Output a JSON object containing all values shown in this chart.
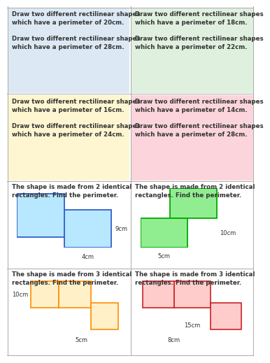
{
  "bg_color": "#ffffff",
  "cell_colors": [
    "#dce9f5",
    "#dff0de",
    "#fdf6d0",
    "#fcd5dc"
  ],
  "top_left_texts": [
    "Draw two different rectilinear shapes\nwhich have a perimeter of 20cm.\n\nDraw two different rectilinear shapes\nwhich have a perimeter of 28cm.",
    "Draw two different rectilinear shapes\nwhich have a perimeter of 18cm.\n\nDraw two different rectilinear shapes\nwhich have a perimeter of 22cm.",
    "Draw two different rectilinear shapes\nwhich have a perimeter of 16cm.\n\nDraw two different rectilinear shapes\nwhich have a perimeter of 24cm.",
    "Draw two different rectilinear shapes\nwhich have a perimeter of 14cm.\n\nDraw two different rectilinear shapes\nwhich have a perimeter of 28cm."
  ],
  "bottom_titles": [
    "The shape is made from 2 identical\nrectangles. Find the perimeter.",
    "The shape is made from 2 identical\nrectangles. Find the perimeter.",
    "The shape is made from 3 identical\nrectangles. Find the perimeter.",
    "The shape is made from 3 identical\nrectangles. Find the perimeter."
  ],
  "shape_colors_fill": [
    "#b8e8ff",
    "#90ee90",
    "#fff0c8",
    "#ffcccc"
  ],
  "shape_colors_edge": [
    "#3060cc",
    "#00aa00",
    "#ff8c00",
    "#cc2222"
  ],
  "grid_color": "#aaaaaa",
  "text_color": "#333333",
  "text_fontsize": 6.2,
  "label_fontsize": 6.0
}
